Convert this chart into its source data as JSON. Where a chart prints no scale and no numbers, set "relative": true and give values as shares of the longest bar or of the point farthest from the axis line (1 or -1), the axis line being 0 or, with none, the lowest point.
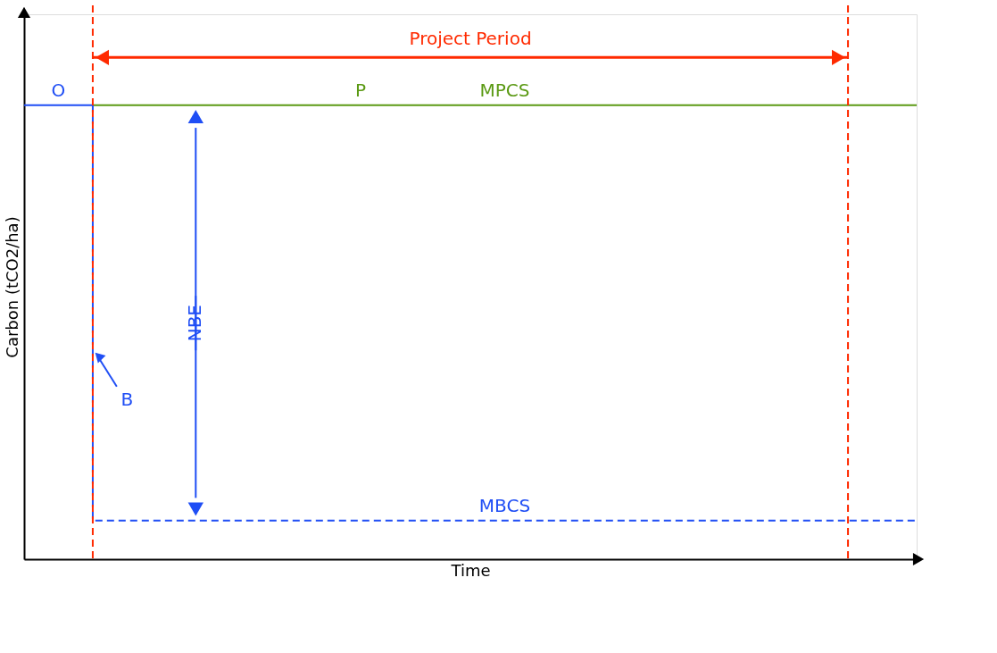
{
  "chart_data": {
    "type": "line",
    "relative": true,
    "xlabel": "Time",
    "ylabel": "Carbon (tCO2/ha)",
    "categories": [
      null,
      null,
      null,
      null,
      null,
      null,
      null,
      null,
      null,
      null,
      null,
      null,
      null,
      null
    ],
    "series": [
      {
        "name": "O",
        "color": "#1f4ef5",
        "line_style": "solid",
        "values": [
          1,
          1,
          null,
          null,
          null,
          null,
          null,
          null,
          null,
          null,
          null,
          null,
          null,
          null
        ]
      },
      {
        "name": "MPCS",
        "color": "#5b9a14",
        "line_style": "solid",
        "values": [
          null,
          1,
          1,
          1,
          1,
          1,
          1,
          1,
          1,
          1,
          1,
          1,
          1,
          1
        ]
      },
      {
        "name": "MBCS",
        "type": "step",
        "color": "#1f4ef5",
        "line_style": "dashed",
        "values": [
          null,
          1,
          0.085,
          0.085,
          0.085,
          0.085,
          0.085,
          0.085,
          0.085,
          0.085,
          0.085,
          0.085,
          0.085,
          0.085
        ]
      }
    ],
    "annotations": [
      "Project Period",
      "P",
      "NBE",
      "B"
    ],
    "marker": "none"
  }
}
